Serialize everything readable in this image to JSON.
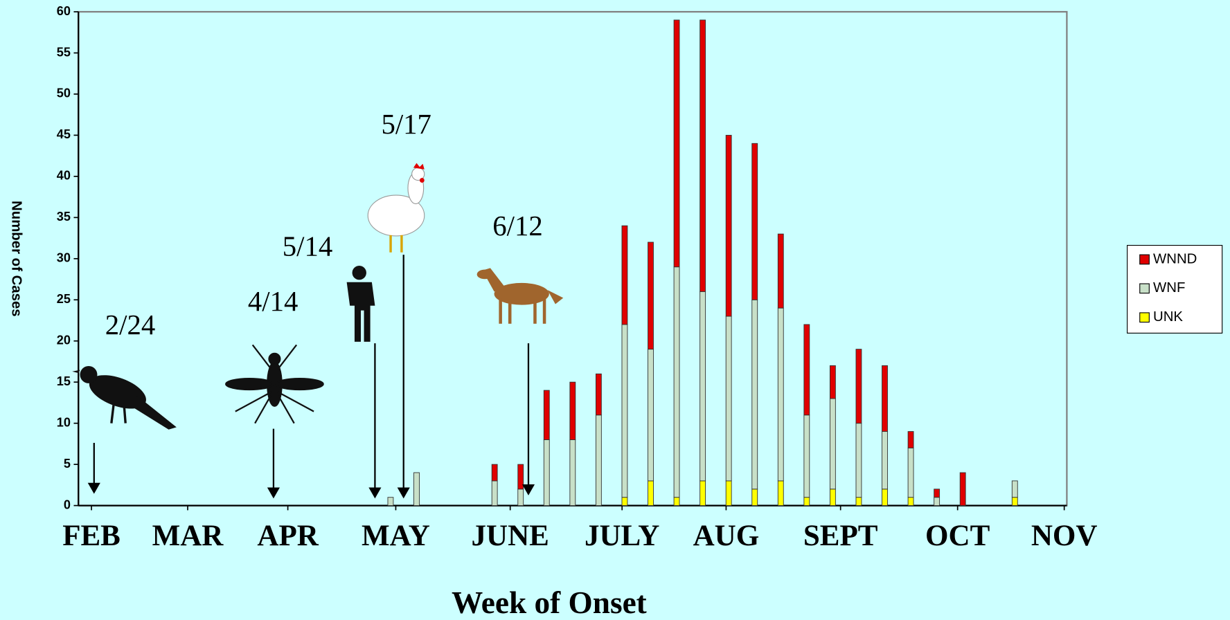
{
  "chart_data": {
    "type": "bar",
    "stacked": true,
    "x_label": "Week of Onset",
    "y_label": "Number of Cases",
    "x": [
      12,
      13,
      16,
      17,
      18,
      19,
      20,
      21,
      22,
      23,
      24,
      25,
      26,
      27,
      28,
      29,
      30,
      31,
      32,
      33,
      34,
      36
    ],
    "series": [
      {
        "name": "WNND",
        "color": "#e00000",
        "values": [
          0,
          0,
          2,
          3,
          6,
          7,
          5,
          12,
          13,
          30,
          33,
          22,
          19,
          9,
          11,
          4,
          9,
          8,
          2,
          1,
          4,
          0
        ]
      },
      {
        "name": "WNF",
        "color": "#c8e0c8",
        "values": [
          1,
          4,
          3,
          2,
          8,
          8,
          11,
          21,
          16,
          28,
          23,
          20,
          23,
          21,
          10,
          11,
          9,
          7,
          6,
          1,
          0,
          2
        ]
      },
      {
        "name": "UNK",
        "color": "#ffff00",
        "values": [
          0,
          0,
          0,
          0,
          0,
          0,
          0,
          1,
          3,
          1,
          3,
          3,
          2,
          3,
          1,
          2,
          1,
          2,
          1,
          0,
          0,
          1
        ]
      }
    ],
    "xlim": [
      0,
      38
    ],
    "ylim": [
      0,
      60
    ],
    "yticks": [
      0,
      5,
      10,
      15,
      20,
      25,
      30,
      35,
      40,
      45,
      50,
      55,
      60
    ],
    "xticks": [
      {
        "value": 0.5,
        "label": "FEB"
      },
      {
        "value": 4.2,
        "label": "MAR"
      },
      {
        "value": 8.05,
        "label": "APR"
      },
      {
        "value": 12.2,
        "label": "MAY"
      },
      {
        "value": 16.6,
        "label": "JUNE"
      },
      {
        "value": 20.9,
        "label": "JULY"
      },
      {
        "value": 24.9,
        "label": "AUG"
      },
      {
        "value": 29.3,
        "label": "SEPT"
      },
      {
        "value": 33.8,
        "label": "OCT"
      },
      {
        "value": 37.9,
        "label": "NOV"
      }
    ],
    "legend": "right",
    "annotations": [
      {
        "text": "2/24",
        "x": 0.6
      },
      {
        "text": "4/14",
        "x": 7.5
      },
      {
        "text": "5/14",
        "x": 11.4
      },
      {
        "text": "5/17",
        "x": 12.5
      },
      {
        "text": "6/12",
        "x": 17.3
      }
    ]
  }
}
